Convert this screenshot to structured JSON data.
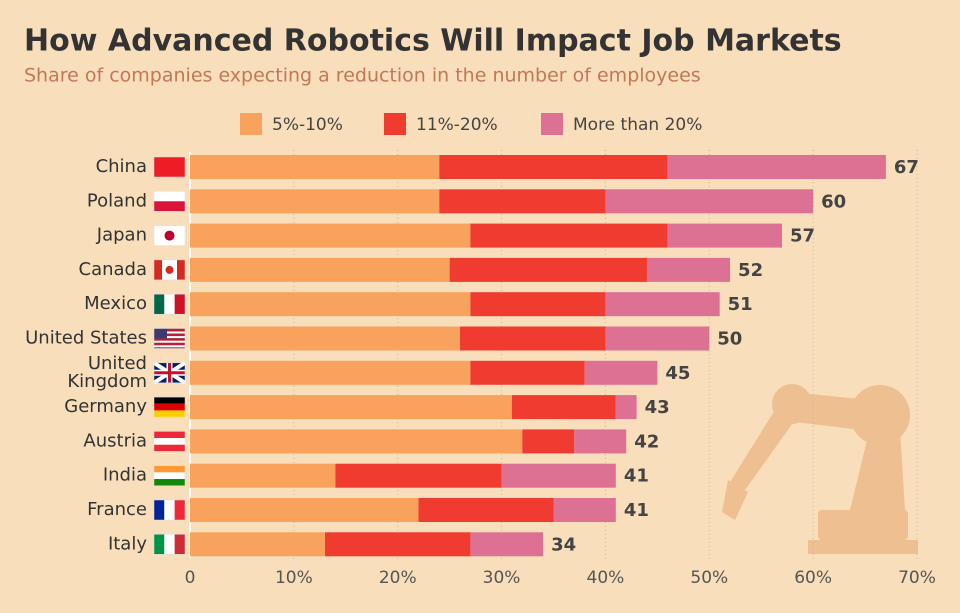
{
  "chart_data": {
    "type": "stacked_barh",
    "title": "How Advanced Robotics Will Impact Job Markets",
    "subtitle": "Share of companies expecting a reduction in the number of employees",
    "categories": [
      "China",
      "Poland",
      "Japan",
      "Canada",
      "Mexico",
      "United States",
      "United Kingdom",
      "Germany",
      "Austria",
      "India",
      "France",
      "Italy"
    ],
    "series": [
      {
        "name": "5%-10%",
        "color": "#f9a25e",
        "values": [
          24,
          24,
          27,
          25,
          27,
          26,
          27,
          31,
          32,
          14,
          22,
          13
        ]
      },
      {
        "name": "11%-20%",
        "color": "#f03c30",
        "values": [
          22,
          16,
          19,
          19,
          13,
          14,
          11,
          10,
          5,
          16,
          13,
          14
        ]
      },
      {
        "name": "More than 20%",
        "color": "#dc7194",
        "values": [
          21,
          20,
          11,
          8,
          11,
          10,
          7,
          2,
          5,
          11,
          6,
          7
        ]
      }
    ],
    "totals": [
      67,
      60,
      57,
      52,
      51,
      50,
      45,
      43,
      42,
      41,
      41,
      34
    ],
    "xlim": [
      0,
      70
    ],
    "xticks": [
      0,
      {
        "value": 10,
        "label": "10%"
      },
      {
        "value": 20,
        "label": "20%"
      },
      {
        "value": 30,
        "label": "30%"
      },
      {
        "value": 40,
        "label": "40%"
      },
      {
        "value": 50,
        "label": "50%"
      },
      {
        "value": 60,
        "label": "60%"
      },
      {
        "value": 70,
        "label": "70%"
      }
    ],
    "grid": true
  }
}
